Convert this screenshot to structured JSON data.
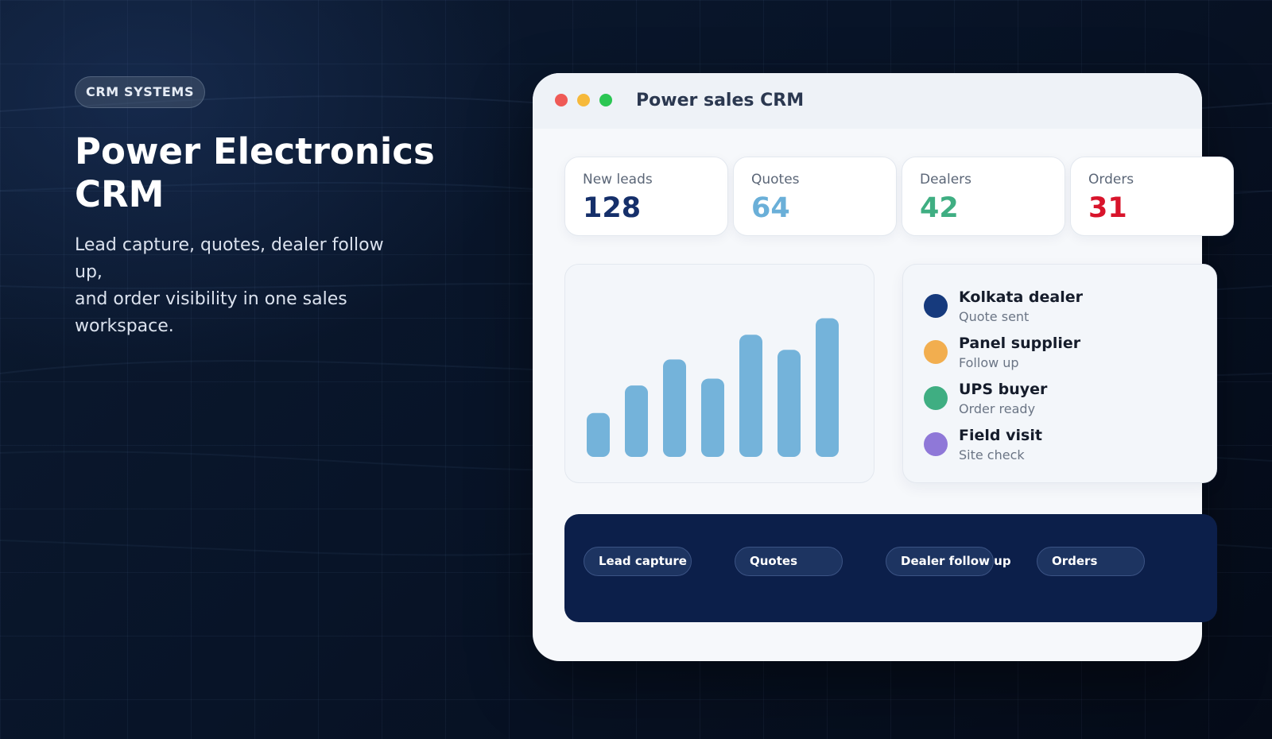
{
  "hero": {
    "badge": "CRM SYSTEMS",
    "title_line1": "Power Electronics",
    "title_line2": "CRM",
    "subtitle_lines": [
      "Lead capture, quotes, dealer follow",
      "up,",
      "and order visibility in one sales",
      "workspace."
    ]
  },
  "window": {
    "title": "Power sales CRM",
    "controls": [
      "close",
      "minimize",
      "maximize"
    ]
  },
  "stats": [
    {
      "label": "New leads",
      "value": "128",
      "color": "#152f6a"
    },
    {
      "label": "Quotes",
      "value": "64",
      "color": "#6aafd8"
    },
    {
      "label": "Dealers",
      "value": "42",
      "color": "#3fae82"
    },
    {
      "label": "Orders",
      "value": "31",
      "color": "#d8142b"
    }
  ],
  "chart_data": {
    "type": "bar",
    "values": [
      32,
      52,
      71,
      57,
      89,
      78,
      101
    ],
    "ylim": [
      0,
      110
    ],
    "color": "#74b3da",
    "grid": false,
    "legend": "none"
  },
  "activity": [
    {
      "name": "Kolkata dealer",
      "status": "Quote sent",
      "color": "#163a7d"
    },
    {
      "name": "Panel supplier",
      "status": "Follow up",
      "color": "#f2ae4f"
    },
    {
      "name": "UPS buyer",
      "status": "Order ready",
      "color": "#3fae82"
    },
    {
      "name": "Field visit",
      "status": "Site check",
      "color": "#8f78d8"
    }
  ],
  "pipeline": [
    "Lead capture",
    "Quotes",
    "Dealer follow up",
    "Orders"
  ]
}
